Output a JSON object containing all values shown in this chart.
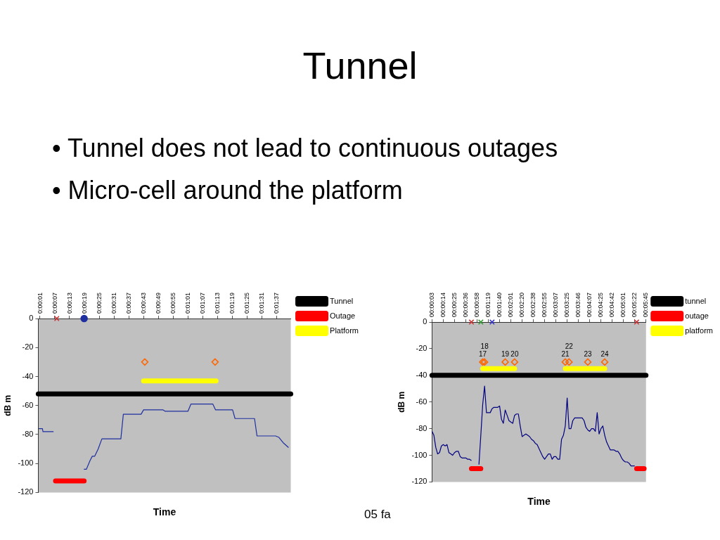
{
  "chart_data": [
    {
      "type": "other",
      "title": "Tunnel",
      "annotations": [
        "• Tunnel does not lead to continuous outages",
        "• Micro-cell around the platform"
      ]
    },
    {
      "type": "line",
      "xlabel": "Time",
      "ylabel": "dB m",
      "annotations": [
        "05 fa"
      ],
      "xlim": [
        0.3,
        102.7
      ],
      "xticks": [
        {
          "value": 1,
          "label": "0:00:01"
        },
        {
          "value": 7,
          "label": "0:00:07"
        },
        {
          "value": 13,
          "label": "0:00:13"
        },
        {
          "value": 19,
          "label": "0:00:19"
        },
        {
          "value": 25,
          "label": "0:00:25"
        },
        {
          "value": 31,
          "label": "0:00:31"
        },
        {
          "value": 37,
          "label": "0:00:37"
        },
        {
          "value": 43,
          "label": "0:00:43"
        },
        {
          "value": 49,
          "label": "0:00:49"
        },
        {
          "value": 55,
          "label": "0:00:55"
        },
        {
          "value": 61,
          "label": "0:01:01"
        },
        {
          "value": 67,
          "label": "0:01:07"
        },
        {
          "value": 73,
          "label": "0:01:13"
        },
        {
          "value": 79,
          "label": "0:01:19"
        },
        {
          "value": 85,
          "label": "0:01:25"
        },
        {
          "value": 91,
          "label": "0:01:31"
        },
        {
          "value": 97,
          "label": "0:01:37"
        }
      ],
      "ylim": [
        -120,
        0
      ],
      "yticks": [
        0,
        -20,
        -40,
        -60,
        -80,
        -100,
        -120
      ],
      "legend": "right",
      "grid": false,
      "marker": "none",
      "series": [
        {
          "color": "#1f2f9f",
          "x": [
            0.5,
            2,
            2.2,
            6.5,
            null,
            18.8,
            19.8,
            21.3,
            22.2,
            23.2,
            24.6,
            26.1,
            33.8,
            34.8,
            42,
            43,
            50.9,
            51.8,
            61,
            62.2,
            71.1,
            72.2,
            79.1,
            80.1,
            88,
            89,
            96.5,
            97.9,
            99.8,
            101.8
          ],
          "values": [
            -76,
            -76,
            -78,
            -78,
            null,
            -104,
            -104,
            -98,
            -95,
            -95,
            -90,
            -83,
            -83,
            -66,
            -66,
            -63,
            -63,
            -64,
            -64,
            -59,
            -59,
            -63,
            -63,
            -69,
            -69,
            -81,
            -81,
            -82,
            -86,
            -89
          ]
        },
        {
          "name": "Tunnel",
          "color": "#000000",
          "x": [
            0.3,
            102.7
          ],
          "values": [
            -52,
            -52
          ]
        },
        {
          "name": "Outage",
          "color": "#ff0000",
          "x": [
            7.3,
            18.9
          ],
          "values": [
            -112,
            -112
          ]
        },
        {
          "name": "Platform",
          "color": "#ffff00",
          "x": [
            43,
            72.4
          ],
          "values": [
            -43,
            -43
          ]
        },
        {
          "type": "scatter",
          "marker": "cross",
          "color": "#cc3333",
          "x": [
            7.8
          ],
          "values": [
            0
          ]
        },
        {
          "type": "scatter",
          "marker": "circle",
          "color": "#1f2f9f",
          "x": [
            18.9
          ],
          "values": [
            0
          ]
        },
        {
          "type": "scatter",
          "marker": "diamond",
          "color": "#ff6600",
          "x": [
            43.5,
            72
          ],
          "values": [
            -30,
            -30
          ]
        }
      ]
    },
    {
      "type": "line",
      "xlabel": "Time",
      "ylabel": "dB m",
      "categories": [
        "00:00:03",
        null,
        null,
        null,
        null,
        null,
        "00:00:14",
        null,
        null,
        null,
        null,
        null,
        "00:00:25",
        null,
        null,
        null,
        null,
        null,
        "00:00:36",
        null,
        null,
        null,
        null,
        null,
        "00:00:58",
        null,
        null,
        null,
        null,
        null,
        "00:01:19",
        null,
        null,
        null,
        null,
        null,
        "00:01:40",
        null,
        null,
        null,
        null,
        null,
        "00:02:01",
        null,
        null,
        null,
        null,
        null,
        "00:02:20",
        null,
        null,
        null,
        null,
        null,
        "00:02:38",
        null,
        null,
        null,
        null,
        null,
        "00:02:55",
        null,
        null,
        null,
        null,
        null,
        "00:03:07",
        null,
        null,
        null,
        null,
        null,
        "00:03:25",
        null,
        null,
        null,
        null,
        null,
        "00:03:46",
        null,
        null,
        null,
        null,
        null,
        "00:04:07",
        null,
        null,
        null,
        null,
        null,
        "00:04:25",
        null,
        null,
        null,
        null,
        null,
        "00:04:42",
        null,
        null,
        null,
        null,
        null,
        "00:05:01",
        null,
        null,
        null,
        null,
        null,
        "00:05:22",
        null,
        null,
        null,
        null,
        null,
        "00:05:45"
      ],
      "ylim": [
        -120,
        0
      ],
      "yticks": [
        0,
        -20,
        -40,
        -60,
        -80,
        -100,
        -120
      ],
      "legend": "right",
      "grid": false,
      "marker": "none",
      "annotations": [
        {
          "text": "17",
          "y": -30
        },
        {
          "text": "18",
          "y": -30
        },
        {
          "text": "19",
          "y": -30
        },
        {
          "text": "20",
          "y": -30
        },
        {
          "text": "21",
          "y": -30
        },
        {
          "text": "22",
          "y": -30
        },
        {
          "text": "23",
          "y": -30
        },
        {
          "text": "24",
          "y": -30
        }
      ],
      "series": [
        {
          "color": "#000080",
          "values": [
            -82,
            -85,
            -94,
            -99,
            -98,
            -93,
            -92,
            -93,
            -92,
            -98,
            -99,
            -100,
            -98,
            -97,
            -97,
            -101,
            -102,
            -102,
            -102,
            -103,
            -103,
            -104,
            null,
            null,
            null,
            -107,
            -85,
            -62,
            -48,
            -68,
            -68,
            -68,
            -65,
            -64,
            -64,
            -64,
            -63,
            -73,
            -76,
            -66,
            -70,
            -74,
            -75,
            -76,
            -70,
            -69,
            -69,
            -78,
            -86,
            -85,
            -84,
            -85,
            -86,
            -88,
            -89,
            -91,
            -92,
            -95,
            -98,
            -101,
            -103,
            -101,
            -99,
            -99,
            -103,
            -101,
            -101,
            -103,
            -103,
            -88,
            -85,
            -78,
            -57,
            -80,
            -80,
            -74,
            -72,
            -72,
            -72,
            -72,
            -72,
            -74,
            -79,
            -81,
            -82,
            -80,
            -80,
            -82,
            -68,
            -84,
            -80,
            -78,
            -85,
            -90,
            -93,
            -96,
            -96,
            -96,
            -97,
            -97,
            -99,
            -102,
            -104,
            -105,
            -105,
            -106,
            -108,
            -108,
            -108,
            null,
            null,
            null,
            null,
            null,
            null
          ]
        },
        {
          "name": "tunnel",
          "color": "#000000",
          "values": [
            -40,
            -40,
            -40,
            -40,
            -40,
            -40,
            -40,
            -40,
            -40,
            -40,
            -40,
            -40,
            -40,
            -40,
            -40,
            -40,
            -40,
            -40,
            -40,
            -40,
            -40,
            -40,
            -40,
            -40,
            -40,
            -40,
            -40,
            -40,
            -40,
            -40,
            -40,
            -40,
            -40,
            -40,
            -40,
            -40,
            -40,
            -40,
            -40,
            -40,
            -40,
            -40,
            -40,
            -40,
            -40,
            -40,
            -40,
            -40,
            -40,
            -40,
            -40,
            -40,
            -40,
            -40,
            -40,
            -40,
            -40,
            -40,
            -40,
            -40,
            -40,
            -40,
            -40,
            -40,
            -40,
            -40,
            -40,
            -40,
            -40,
            -40,
            -40,
            -40,
            -40,
            -40,
            -40,
            -40,
            -40,
            -40,
            -40,
            -40,
            -40,
            -40,
            -40,
            -40,
            -40,
            -40,
            -40,
            -40,
            -40,
            -40,
            -40,
            -40,
            -40,
            -40,
            -40,
            -40,
            -40,
            -40,
            -40,
            -40,
            -40,
            -40,
            -40,
            -40,
            -40,
            -40,
            -40,
            -40,
            -40,
            -40,
            -40,
            -40,
            -40,
            -40,
            -40
          ]
        },
        {
          "name": "outage",
          "color": "#ff0000",
          "values": [
            null,
            null,
            null,
            null,
            null,
            null,
            null,
            null,
            null,
            null,
            null,
            null,
            null,
            null,
            null,
            null,
            null,
            null,
            null,
            null,
            null,
            -110,
            -110,
            -110,
            -110,
            -110,
            -110,
            null,
            null,
            null,
            null,
            null,
            null,
            null,
            null,
            null,
            null,
            null,
            null,
            null,
            null,
            null,
            null,
            null,
            null,
            null,
            null,
            null,
            null,
            null,
            null,
            null,
            null,
            null,
            null,
            null,
            null,
            null,
            null,
            null,
            null,
            null,
            null,
            null,
            null,
            null,
            null,
            null,
            null,
            null,
            null,
            null,
            null,
            null,
            null,
            null,
            null,
            null,
            null,
            null,
            null,
            null,
            null,
            null,
            null,
            null,
            null,
            null,
            null,
            null,
            null,
            null,
            null,
            null,
            null,
            null,
            null,
            null,
            null,
            null,
            null,
            null,
            null,
            null,
            null,
            null,
            null,
            null,
            null,
            -110,
            -110,
            -110,
            -110,
            -110,
            null
          ]
        },
        {
          "name": "platform",
          "color": "#ffff00",
          "values": [
            null,
            null,
            null,
            null,
            null,
            null,
            null,
            null,
            null,
            null,
            null,
            null,
            null,
            null,
            null,
            null,
            null,
            null,
            null,
            null,
            null,
            null,
            null,
            null,
            null,
            null,
            null,
            -35,
            -35,
            -35,
            -35,
            -35,
            -35,
            -35,
            -35,
            -35,
            -35,
            -35,
            -35,
            -35,
            -35,
            -35,
            -35,
            -35,
            -35,
            null,
            null,
            null,
            null,
            null,
            null,
            null,
            null,
            null,
            null,
            null,
            null,
            null,
            null,
            null,
            null,
            null,
            null,
            null,
            null,
            null,
            null,
            null,
            null,
            null,
            null,
            -35,
            -35,
            -35,
            -35,
            -35,
            -35,
            -35,
            -35,
            -35,
            -35,
            -35,
            -35,
            -35,
            -35,
            -35,
            -35,
            -35,
            -35,
            -35,
            -35,
            -35,
            -35,
            null,
            null,
            null,
            null,
            null,
            null,
            null,
            null,
            null,
            null,
            null,
            null,
            null,
            null,
            null,
            null,
            null,
            null,
            null,
            null,
            null,
            null
          ]
        },
        {
          "type": "scatter",
          "marker": "cross",
          "color": "#cc3333",
          "values": [
            null,
            null,
            null,
            null,
            null,
            null,
            null,
            null,
            null,
            null,
            null,
            null,
            null,
            null,
            null,
            null,
            null,
            null,
            null,
            null,
            null,
            0,
            null,
            null,
            null,
            null,
            null,
            null,
            null,
            null,
            null,
            null,
            null,
            null,
            null,
            null,
            null,
            null,
            null,
            null,
            null,
            null,
            null,
            null,
            null,
            null,
            null,
            null,
            null,
            null,
            null,
            null,
            null,
            null,
            null,
            null,
            null,
            null,
            null,
            null,
            null,
            null,
            null,
            null,
            null,
            null,
            null,
            null,
            null,
            null,
            null,
            null,
            null,
            null,
            null,
            null,
            null,
            null,
            null,
            null,
            null,
            null,
            null,
            null,
            null,
            null,
            null,
            null,
            null,
            null,
            null,
            null,
            null,
            null,
            null,
            null,
            null,
            null,
            null,
            null,
            null,
            null,
            null,
            null,
            null,
            null,
            null,
            null,
            null,
            0,
            null,
            null,
            null,
            null,
            null
          ]
        },
        {
          "type": "scatter",
          "marker": "cross",
          "color": "#339933",
          "values": [
            null,
            null,
            null,
            null,
            null,
            null,
            null,
            null,
            null,
            null,
            null,
            null,
            null,
            null,
            null,
            null,
            null,
            null,
            null,
            null,
            null,
            null,
            null,
            null,
            null,
            null,
            0,
            null,
            null,
            null,
            null,
            null,
            null,
            null,
            null,
            null,
            null,
            null,
            null,
            null,
            null,
            null,
            null,
            null,
            null,
            null,
            null,
            null,
            null,
            null,
            null,
            null,
            null,
            null,
            null,
            null,
            null,
            null,
            null,
            null,
            null,
            null,
            null,
            null,
            null,
            null,
            null,
            null,
            null,
            null,
            null,
            null,
            null,
            null,
            null,
            null,
            null,
            null,
            null,
            null,
            null,
            null,
            null,
            null,
            null,
            null,
            null,
            null,
            null,
            null,
            null,
            null,
            null,
            null,
            null,
            null,
            null,
            null,
            null,
            null,
            null,
            null,
            null,
            null,
            null,
            null,
            null,
            null,
            null,
            null,
            null,
            null,
            null,
            null,
            null
          ]
        },
        {
          "type": "scatter",
          "marker": "cross",
          "color": "#3333cc",
          "values": [
            null,
            null,
            null,
            null,
            null,
            null,
            null,
            null,
            null,
            null,
            null,
            null,
            null,
            null,
            null,
            null,
            null,
            null,
            null,
            null,
            null,
            null,
            null,
            null,
            null,
            null,
            null,
            null,
            null,
            null,
            null,
            null,
            0,
            null,
            null,
            null,
            null,
            null,
            null,
            null,
            null,
            null,
            null,
            null,
            null,
            null,
            null,
            null,
            null,
            null,
            null,
            null,
            null,
            null,
            null,
            null,
            null,
            null,
            null,
            null,
            null,
            null,
            null,
            null,
            null,
            null,
            null,
            null,
            null,
            null,
            null,
            null,
            null,
            null,
            null,
            null,
            null,
            null,
            null,
            null,
            null,
            null,
            null,
            null,
            null,
            null,
            null,
            null,
            null,
            null,
            null,
            null,
            null,
            null,
            null,
            null,
            null,
            null,
            null,
            null,
            null,
            null,
            null,
            null,
            null,
            null,
            null,
            null,
            null,
            null,
            null,
            null,
            null,
            null,
            null
          ]
        },
        {
          "type": "scatter",
          "marker": "diamond",
          "color": "#ff6600",
          "values": [
            null,
            null,
            null,
            null,
            null,
            null,
            null,
            null,
            null,
            null,
            null,
            null,
            null,
            null,
            null,
            null,
            null,
            null,
            null,
            null,
            null,
            null,
            null,
            null,
            null,
            null,
            null,
            -30,
            -30,
            null,
            null,
            null,
            null,
            null,
            null,
            null,
            null,
            null,
            null,
            -30,
            null,
            null,
            null,
            null,
            -30,
            null,
            null,
            null,
            null,
            null,
            null,
            null,
            null,
            null,
            null,
            null,
            null,
            null,
            null,
            null,
            null,
            null,
            null,
            null,
            null,
            null,
            null,
            null,
            null,
            null,
            null,
            -30,
            null,
            -30,
            null,
            null,
            null,
            null,
            null,
            null,
            null,
            null,
            null,
            -30,
            null,
            null,
            null,
            null,
            null,
            null,
            null,
            null,
            -30,
            null,
            null,
            null,
            null,
            null,
            null,
            null,
            null,
            null,
            null,
            null,
            null,
            null,
            null,
            null,
            null,
            null,
            null,
            null,
            null,
            null,
            null
          ]
        }
      ]
    }
  ]
}
